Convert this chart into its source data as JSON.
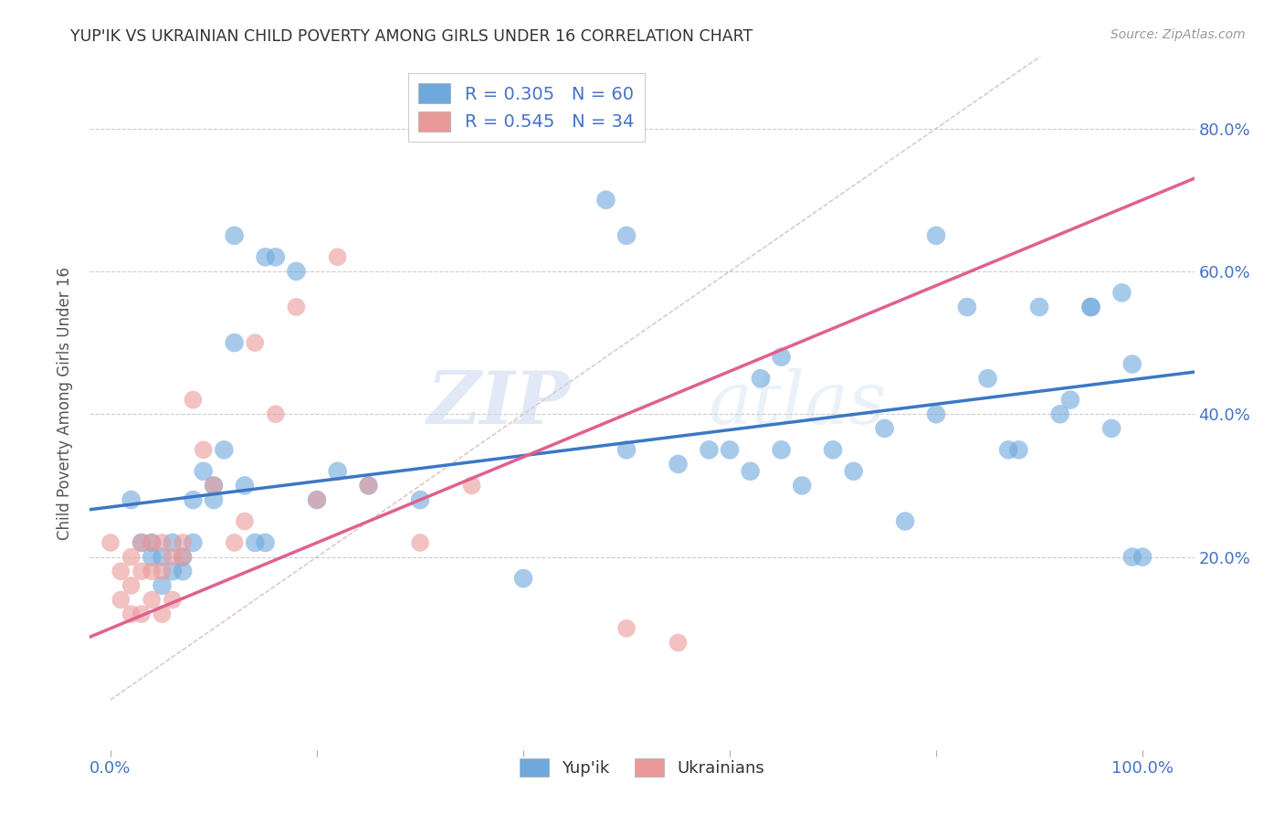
{
  "title": "YUP'IK VS UKRAINIAN CHILD POVERTY AMONG GIRLS UNDER 16 CORRELATION CHART",
  "source": "Source: ZipAtlas.com",
  "ylabel": "Child Poverty Among Girls Under 16",
  "xlim": [
    -0.02,
    1.05
  ],
  "ylim": [
    -0.07,
    0.9
  ],
  "yticks": [
    0.2,
    0.4,
    0.6,
    0.8
  ],
  "yticklabels": [
    "20.0%",
    "40.0%",
    "60.0%",
    "80.0%"
  ],
  "watermark_zip": "ZIP",
  "watermark_atlas": "atlas",
  "legend_label1": "Yup'ik",
  "legend_label2": "Ukrainians",
  "blue_color": "#6fa8dc",
  "pink_color": "#ea9999",
  "blue_line_color": "#3b78c4",
  "pink_line_color": "#e06090",
  "diagonal_color": "#d0b0b0",
  "grid_color": "#cccccc",
  "title_color": "#333333",
  "source_color": "#999999",
  "axis_label_color": "#4472c4",
  "legend_text_color": "#4472c4",
  "yupik_x": [
    0.02,
    0.03,
    0.04,
    0.04,
    0.05,
    0.05,
    0.06,
    0.06,
    0.07,
    0.07,
    0.08,
    0.08,
    0.09,
    0.1,
    0.1,
    0.11,
    0.12,
    0.13,
    0.14,
    0.15,
    0.16,
    0.18,
    0.2,
    0.22,
    0.25,
    0.3,
    0.4,
    0.48,
    0.5,
    0.55,
    0.58,
    0.6,
    0.62,
    0.63,
    0.65,
    0.67,
    0.7,
    0.72,
    0.75,
    0.77,
    0.8,
    0.83,
    0.85,
    0.87,
    0.88,
    0.9,
    0.92,
    0.93,
    0.95,
    0.97,
    0.98,
    0.99,
    1.0,
    0.12,
    0.15,
    0.5,
    0.65,
    0.8,
    0.95,
    0.99
  ],
  "yupik_y": [
    0.28,
    0.22,
    0.2,
    0.22,
    0.16,
    0.2,
    0.18,
    0.22,
    0.18,
    0.2,
    0.22,
    0.28,
    0.32,
    0.3,
    0.28,
    0.35,
    0.5,
    0.3,
    0.22,
    0.22,
    0.62,
    0.6,
    0.28,
    0.32,
    0.3,
    0.28,
    0.17,
    0.7,
    0.35,
    0.33,
    0.35,
    0.35,
    0.32,
    0.45,
    0.35,
    0.3,
    0.35,
    0.32,
    0.38,
    0.25,
    0.4,
    0.55,
    0.45,
    0.35,
    0.35,
    0.55,
    0.4,
    0.42,
    0.55,
    0.38,
    0.57,
    0.47,
    0.2,
    0.65,
    0.62,
    0.65,
    0.48,
    0.65,
    0.55,
    0.2
  ],
  "ukrainian_x": [
    0.0,
    0.01,
    0.01,
    0.02,
    0.02,
    0.02,
    0.03,
    0.03,
    0.03,
    0.04,
    0.04,
    0.04,
    0.05,
    0.05,
    0.05,
    0.06,
    0.06,
    0.07,
    0.07,
    0.08,
    0.09,
    0.1,
    0.12,
    0.13,
    0.14,
    0.16,
    0.18,
    0.2,
    0.22,
    0.25,
    0.3,
    0.35,
    0.5,
    0.55
  ],
  "ukrainian_y": [
    0.22,
    0.14,
    0.18,
    0.12,
    0.16,
    0.2,
    0.12,
    0.18,
    0.22,
    0.14,
    0.18,
    0.22,
    0.12,
    0.18,
    0.22,
    0.14,
    0.2,
    0.2,
    0.22,
    0.42,
    0.35,
    0.3,
    0.22,
    0.25,
    0.5,
    0.4,
    0.55,
    0.28,
    0.62,
    0.3,
    0.22,
    0.3,
    0.1,
    0.08
  ],
  "blue_slope": 0.18,
  "blue_intercept": 0.27,
  "pink_slope": 0.6,
  "pink_intercept": 0.1
}
